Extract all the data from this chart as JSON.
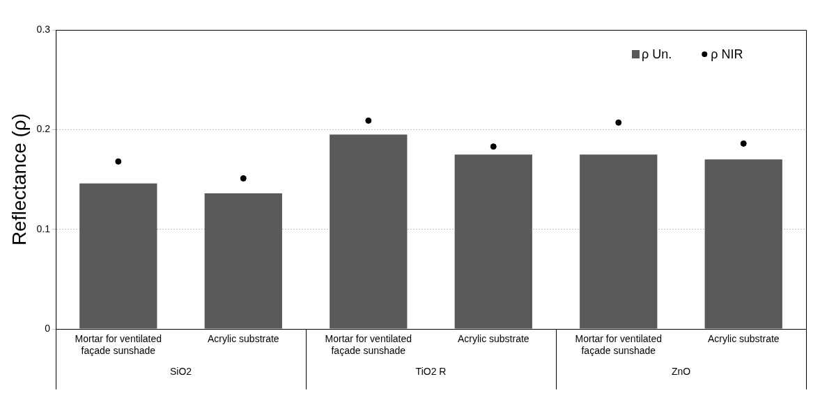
{
  "chart_data": {
    "type": "bar",
    "ylabel": "Reflectance (ρ)",
    "categories": [
      "Mortar for ventilated façade sunshade",
      "Acrylic substrate",
      "Mortar for ventilated façade sunshade",
      "Acrylic substrate",
      "Mortar for ventilated façade sunshade",
      "Acrylic substrate"
    ],
    "series": [
      {
        "name": "ρ Un.",
        "color": "#595959",
        "values": [
          0.146,
          0.136,
          0.195,
          0.175,
          0.175,
          0.17
        ]
      },
      {
        "name": "ρ NIR",
        "type": "scatter",
        "color": "#000000",
        "marker": "circle",
        "values": [
          0.168,
          0.151,
          0.209,
          0.183,
          0.207,
          0.186
        ]
      }
    ],
    "annotations": [
      "SiO2",
      "TiO2 R",
      "ZnO"
    ],
    "ylim": [
      0,
      0.3
    ],
    "yticks": [
      0,
      0.1,
      0.2,
      0.3
    ],
    "grid": "y",
    "legend": "top right"
  }
}
